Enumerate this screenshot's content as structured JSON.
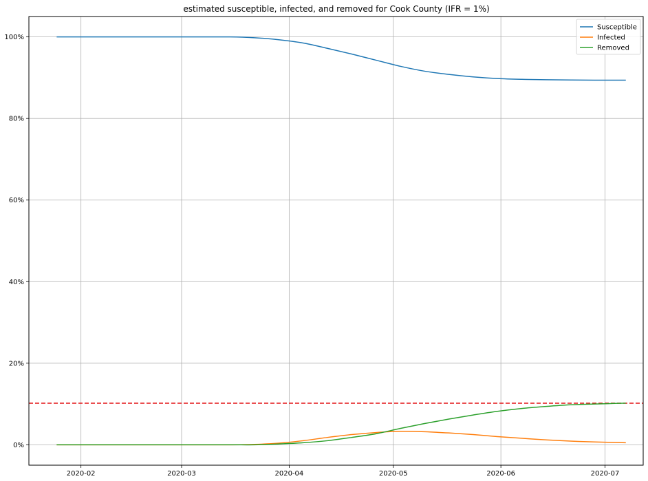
{
  "chart_data": {
    "type": "line",
    "title": "estimated susceptible, infected, and removed for Cook County (IFR = 1%)",
    "xlabel": "",
    "ylabel": "",
    "x_type": "date",
    "x_range": [
      "2020-01-17",
      "2020-07-12"
    ],
    "ylim": [
      -0.05,
      1.05
    ],
    "x_tick_labels": [
      "2020-02",
      "2020-03",
      "2020-04",
      "2020-05",
      "2020-06",
      "2020-07"
    ],
    "x_tick_dates": [
      "2020-02-01",
      "2020-03-01",
      "2020-04-01",
      "2020-05-01",
      "2020-06-01",
      "2020-07-01"
    ],
    "y_ticks": [
      0,
      0.2,
      0.4,
      0.6,
      0.8,
      1.0
    ],
    "y_tick_labels": [
      "0%",
      "20%",
      "40%",
      "60%",
      "80%",
      "100%"
    ],
    "grid": true,
    "legend_position": "top-right",
    "reference_line": {
      "y": 0.102,
      "color": "#e41a1c",
      "style": "dashed"
    },
    "series": [
      {
        "name": "Susceptible",
        "color": "#1f77b4",
        "points": [
          [
            "2020-01-25",
            1.0
          ],
          [
            "2020-02-15",
            1.0
          ],
          [
            "2020-03-01",
            1.0
          ],
          [
            "2020-03-15",
            1.0
          ],
          [
            "2020-03-22",
            0.998
          ],
          [
            "2020-03-29",
            0.993
          ],
          [
            "2020-04-05",
            0.985
          ],
          [
            "2020-04-12",
            0.972
          ],
          [
            "2020-04-19",
            0.958
          ],
          [
            "2020-04-26",
            0.943
          ],
          [
            "2020-05-03",
            0.928
          ],
          [
            "2020-05-10",
            0.916
          ],
          [
            "2020-05-17",
            0.908
          ],
          [
            "2020-05-24",
            0.902
          ],
          [
            "2020-05-31",
            0.898
          ],
          [
            "2020-06-07",
            0.896
          ],
          [
            "2020-06-14",
            0.895
          ],
          [
            "2020-06-28",
            0.894
          ],
          [
            "2020-07-07",
            0.894
          ]
        ]
      },
      {
        "name": "Infected",
        "color": "#ff7f0e",
        "points": [
          [
            "2020-01-25",
            0.0
          ],
          [
            "2020-03-01",
            0.0
          ],
          [
            "2020-03-15",
            0.0
          ],
          [
            "2020-03-22",
            0.001
          ],
          [
            "2020-03-29",
            0.004
          ],
          [
            "2020-04-05",
            0.01
          ],
          [
            "2020-04-12",
            0.018
          ],
          [
            "2020-04-19",
            0.025
          ],
          [
            "2020-04-26",
            0.03
          ],
          [
            "2020-05-03",
            0.033
          ],
          [
            "2020-05-10",
            0.032
          ],
          [
            "2020-05-17",
            0.029
          ],
          [
            "2020-05-24",
            0.025
          ],
          [
            "2020-05-31",
            0.02
          ],
          [
            "2020-06-07",
            0.016
          ],
          [
            "2020-06-14",
            0.012
          ],
          [
            "2020-06-21",
            0.009
          ],
          [
            "2020-06-28",
            0.007
          ],
          [
            "2020-07-07",
            0.005
          ]
        ]
      },
      {
        "name": "Removed",
        "color": "#2ca02c",
        "points": [
          [
            "2020-01-25",
            0.0
          ],
          [
            "2020-03-01",
            0.0
          ],
          [
            "2020-03-15",
            0.0
          ],
          [
            "2020-03-22",
            0.0
          ],
          [
            "2020-03-29",
            0.002
          ],
          [
            "2020-04-05",
            0.005
          ],
          [
            "2020-04-12",
            0.01
          ],
          [
            "2020-04-19",
            0.018
          ],
          [
            "2020-04-26",
            0.027
          ],
          [
            "2020-05-03",
            0.04
          ],
          [
            "2020-05-10",
            0.052
          ],
          [
            "2020-05-17",
            0.063
          ],
          [
            "2020-05-24",
            0.073
          ],
          [
            "2020-05-31",
            0.082
          ],
          [
            "2020-06-07",
            0.089
          ],
          [
            "2020-06-14",
            0.094
          ],
          [
            "2020-06-21",
            0.098
          ],
          [
            "2020-06-28",
            0.1
          ],
          [
            "2020-07-07",
            0.102
          ]
        ]
      }
    ]
  }
}
